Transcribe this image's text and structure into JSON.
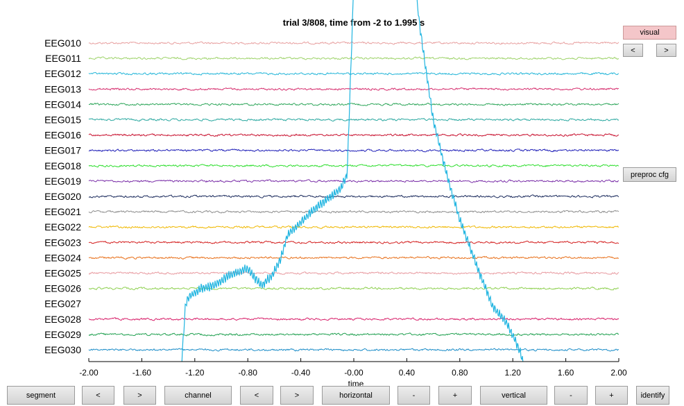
{
  "title": "trial 3/808, time from -2 to 1.995 s",
  "x_axis_label": "time",
  "side_buttons": {
    "visual": "visual",
    "prev": "<",
    "next": ">",
    "preproc": "preproc cfg"
  },
  "bottom_toolbar": {
    "segment": "segment",
    "segment_prev": "<",
    "segment_next": ">",
    "channel": "channel",
    "channel_prev": "<",
    "channel_next": ">",
    "horizontal": "horizontal",
    "horizontal_minus": "-",
    "horizontal_plus": "+",
    "vertical": "vertical",
    "vertical_minus": "-",
    "vertical_plus": "+",
    "identify": "identify"
  },
  "chart_data": {
    "type": "line",
    "title": "trial 3/808, time from -2 to 1.995 s",
    "xlabel": "time",
    "xlim": [
      -2.0,
      2.0
    ],
    "x_ticks": [
      "-2.00",
      "-1.60",
      "-1.20",
      "-0.80",
      "-0.40",
      "-0.00",
      "0.40",
      "0.80",
      "1.20",
      "1.60",
      "2.00"
    ],
    "channels": [
      {
        "name": "EEG010",
        "color": "#e8a0a0"
      },
      {
        "name": "EEG011",
        "color": "#9ed36a"
      },
      {
        "name": "EEG012",
        "color": "#22b5d8"
      },
      {
        "name": "EEG013",
        "color": "#d62e6e"
      },
      {
        "name": "EEG014",
        "color": "#2ea65a"
      },
      {
        "name": "EEG015",
        "color": "#2aa8a0"
      },
      {
        "name": "EEG016",
        "color": "#c8102e"
      },
      {
        "name": "EEG017",
        "color": "#1f1fb8"
      },
      {
        "name": "EEG018",
        "color": "#2ede2e"
      },
      {
        "name": "EEG019",
        "color": "#7a2ea8"
      },
      {
        "name": "EEG020",
        "color": "#1a2a5c"
      },
      {
        "name": "EEG021",
        "color": "#8c8c8c"
      },
      {
        "name": "EEG022",
        "color": "#f0b800"
      },
      {
        "name": "EEG023",
        "color": "#d42020"
      },
      {
        "name": "EEG024",
        "color": "#e8701a"
      },
      {
        "name": "EEG025",
        "color": "#e89aa0"
      },
      {
        "name": "EEG026",
        "color": "#8ed050"
      },
      {
        "name": "EEG027",
        "color": "#1fb4e0"
      },
      {
        "name": "EEG028",
        "color": "#d8206a"
      },
      {
        "name": "EEG029",
        "color": "#20a050"
      },
      {
        "name": "EEG030",
        "color": "#1a8cc8"
      }
    ],
    "artifact_channel": "EEG027",
    "artifact_color": "#1fb4e0",
    "artifact_envelope": {
      "t": [
        -1.3,
        -1.27,
        -1.24,
        -1.15,
        -1.05,
        -0.95,
        -0.8,
        -0.7,
        -0.62,
        -0.55,
        -0.5,
        -0.3,
        -0.1,
        -0.05,
        0.0,
        0.45,
        0.5,
        0.6,
        0.7,
        0.8,
        0.95,
        1.05,
        1.15,
        1.25,
        1.3
      ],
      "y": [
        -4.0,
        0.0,
        0.5,
        1.0,
        1.2,
        1.8,
        2.3,
        1.2,
        1.8,
        3.0,
        4.5,
        6.2,
        7.5,
        8.5,
        21.0,
        22.0,
        18.0,
        12.0,
        8.5,
        5.5,
        2.0,
        -0.2,
        -1.2,
        -3.0,
        -4.5
      ]
    },
    "grid": false
  }
}
